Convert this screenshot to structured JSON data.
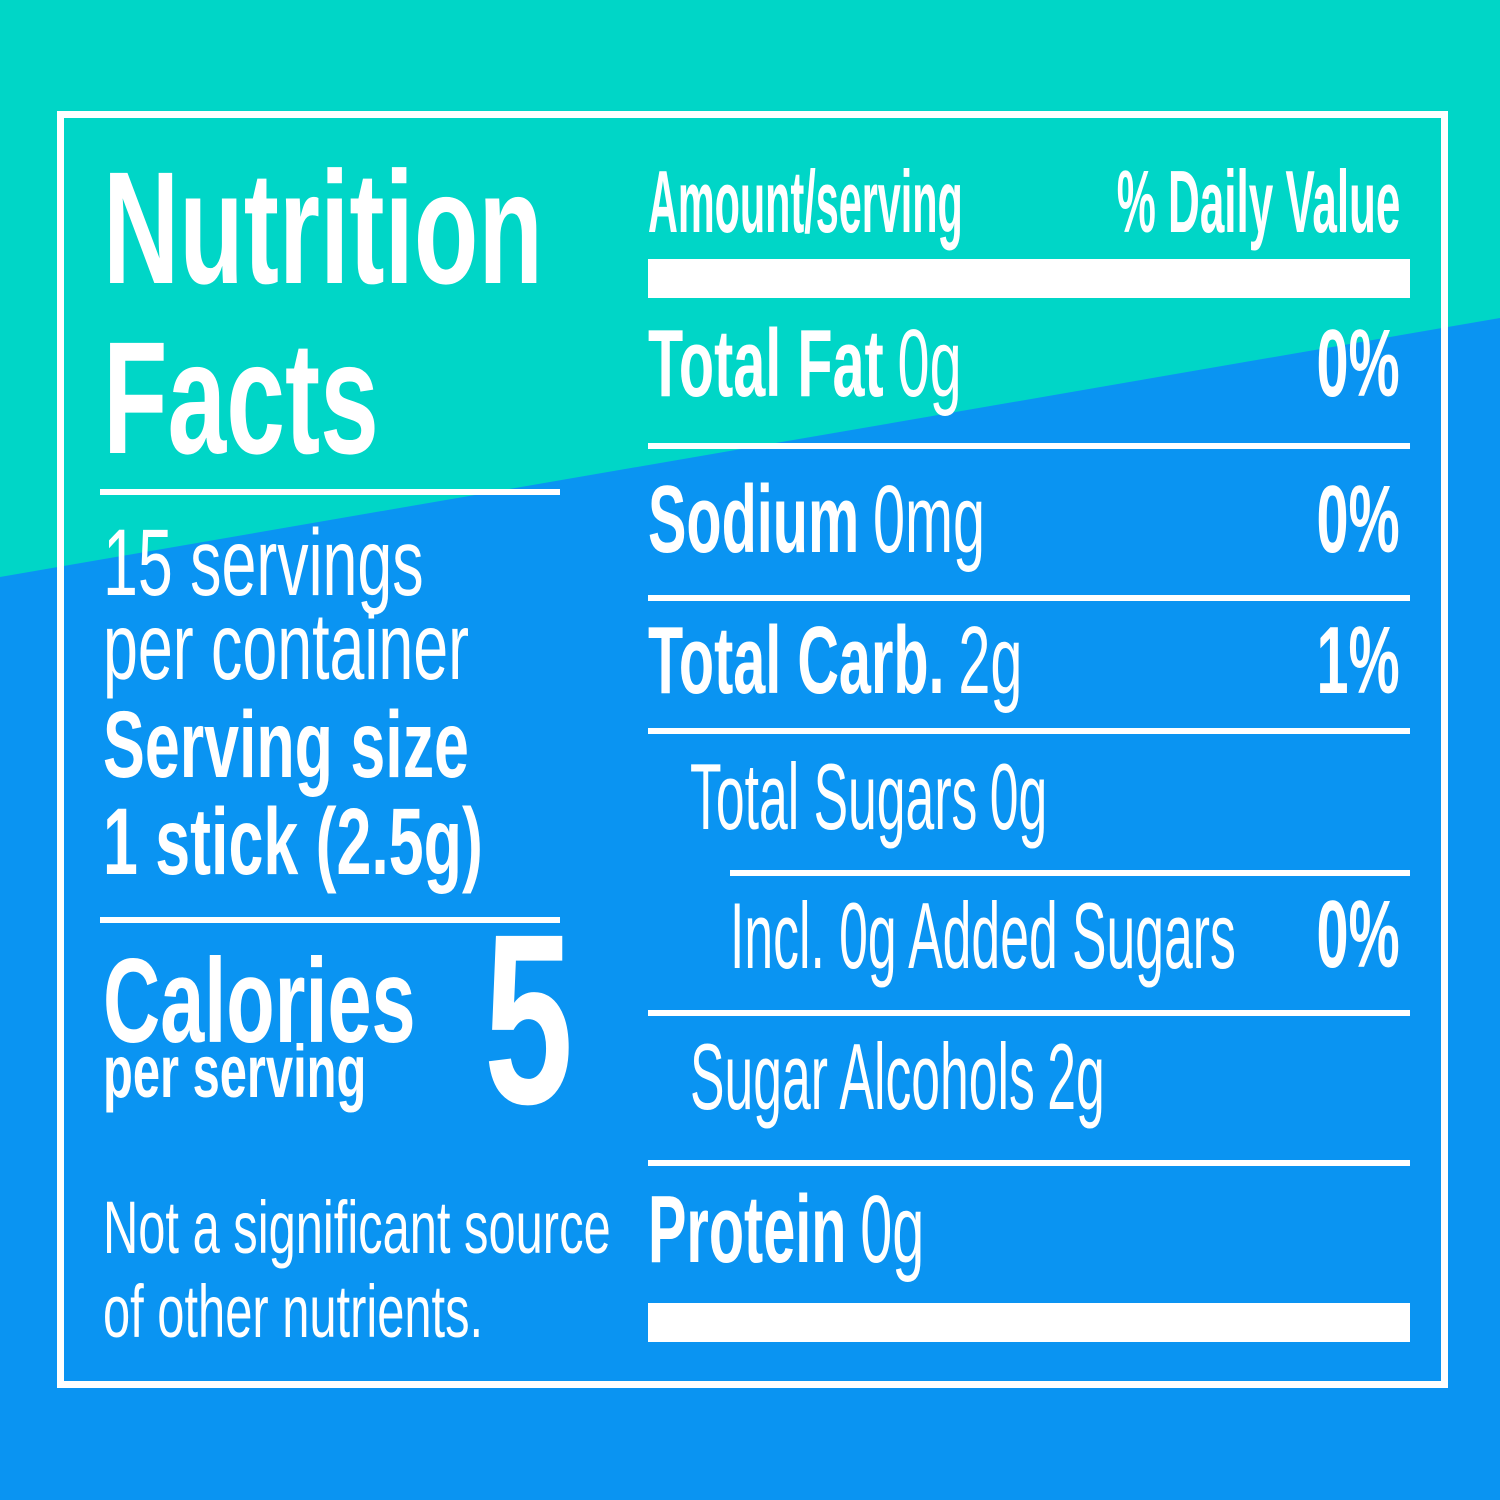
{
  "colors": {
    "teal": "#00D6C7",
    "blue": "#0A94F2",
    "white": "#FFFFFF"
  },
  "title": {
    "line1": "Nutrition",
    "line2": "Facts"
  },
  "serving_info": {
    "line1": "15 servings",
    "line2": "per container",
    "size_label": "Serving size",
    "size_value": "1 stick (2.5g)"
  },
  "calories": {
    "label": "Calories",
    "sub": "per serving",
    "value": "5"
  },
  "footnote": {
    "line1": "Not a significant source",
    "line2": "of other nutrients."
  },
  "table": {
    "header": {
      "amount": "Amount/serving",
      "daily_value": "% Daily Value"
    },
    "rows": [
      {
        "name": "Total Fat",
        "amount": "0g",
        "dv": "0%"
      },
      {
        "name": "Sodium",
        "amount": "0mg",
        "dv": "0%"
      },
      {
        "name": "Total Carb.",
        "amount": "2g",
        "dv": "1%"
      },
      {
        "name": "Total Sugars",
        "amount": "0g",
        "dv": ""
      },
      {
        "name": "Incl. 0g Added Sugars",
        "amount": "",
        "dv": "0%"
      },
      {
        "name": "Sugar Alcohols",
        "amount": "2g",
        "dv": ""
      },
      {
        "name": "Protein",
        "amount": "0g",
        "dv": ""
      }
    ]
  }
}
